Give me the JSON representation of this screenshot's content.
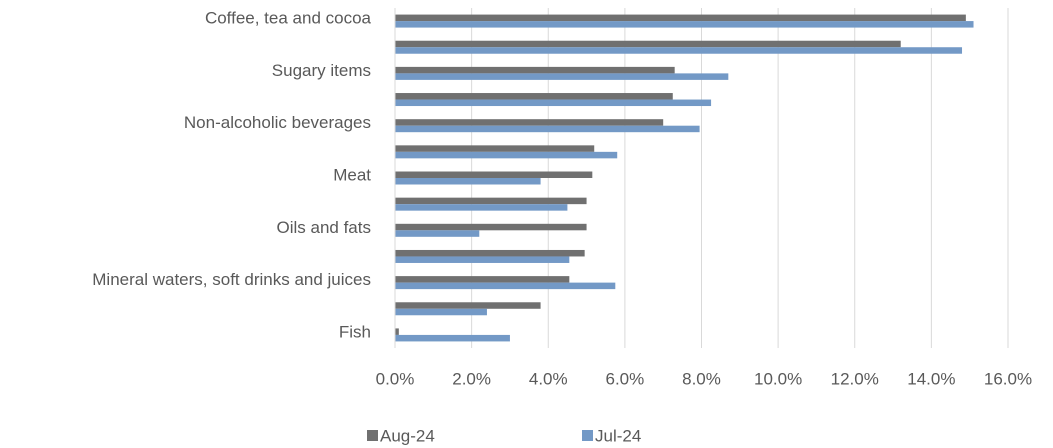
{
  "chart_data": {
    "type": "bar",
    "orientation": "horizontal",
    "categories": [
      "Coffee, tea and cocoa",
      null,
      "Sugary items",
      null,
      "Non-alcoholic beverages",
      null,
      "Meat",
      null,
      "Oils and fats",
      null,
      "Mineral waters, soft drinks and juices",
      null,
      "Fish"
    ],
    "series": [
      {
        "name": "Aug-24",
        "color": "#707070",
        "values": [
          14.9,
          13.2,
          7.3,
          7.25,
          7.0,
          5.2,
          5.15,
          5.0,
          5.0,
          4.95,
          4.55,
          3.8,
          0.1
        ]
      },
      {
        "name": "Jul-24",
        "color": "#7399c6",
        "values": [
          15.1,
          14.8,
          8.7,
          8.25,
          7.95,
          5.8,
          3.8,
          4.5,
          2.2,
          4.55,
          5.75,
          2.4,
          3.0
        ]
      }
    ],
    "xlim": [
      0,
      16
    ],
    "xticks": [
      {
        "value": 0,
        "label": "0.0%"
      },
      {
        "value": 2,
        "label": "2.0%"
      },
      {
        "value": 4,
        "label": "4.0%"
      },
      {
        "value": 6,
        "label": "6.0%"
      },
      {
        "value": 8,
        "label": "8.0%"
      },
      {
        "value": 10,
        "label": "10.0%"
      },
      {
        "value": 12,
        "label": "12.0%"
      },
      {
        "value": 14,
        "label": "14.0%"
      },
      {
        "value": 16,
        "label": "16.0%"
      }
    ],
    "grid": true,
    "legend": "bottom"
  }
}
